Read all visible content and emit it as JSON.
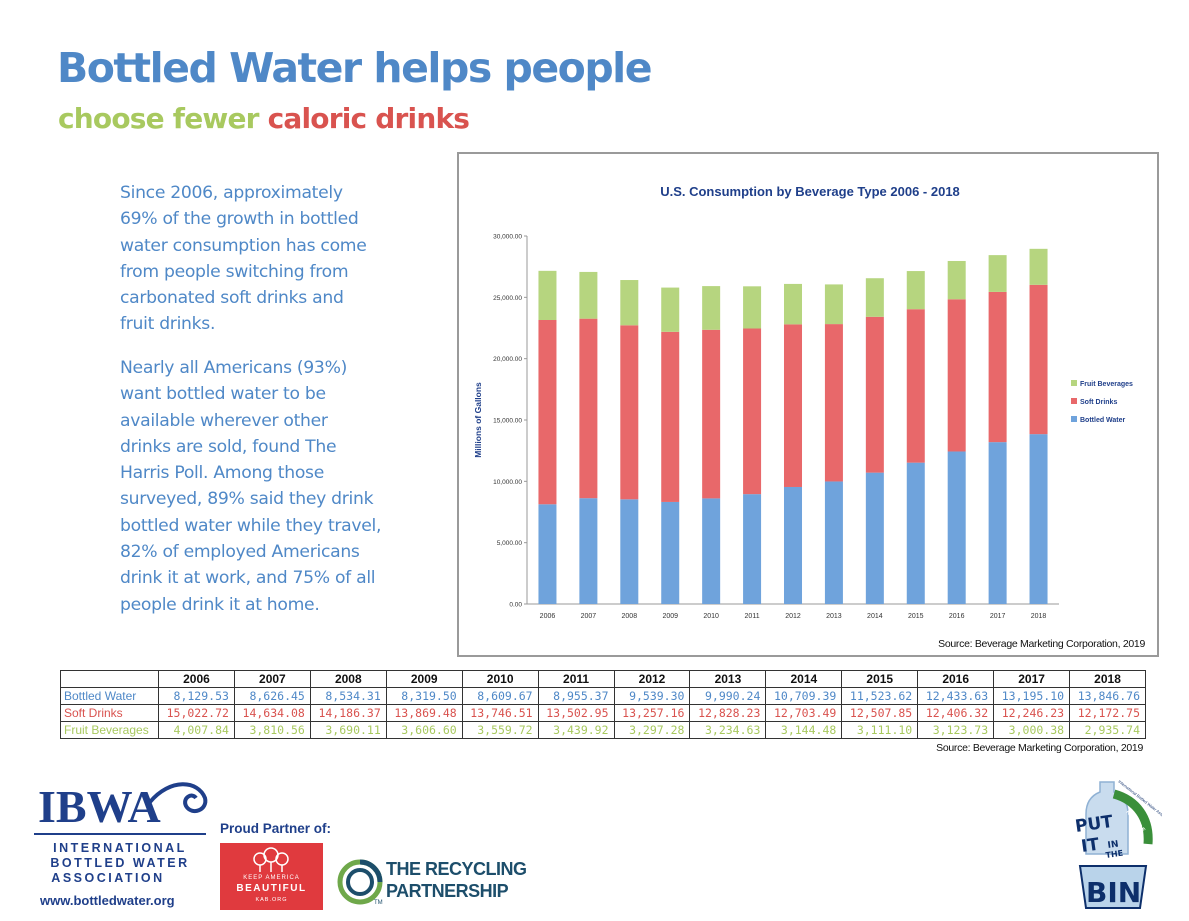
{
  "header": {
    "title": "Bottled Water helps people",
    "subtitle_part1": "choose fewer",
    "subtitle_part2": "caloric drinks"
  },
  "body": {
    "paragraph1": "Since 2006, approximately 69% of the growth in bottled water consumption has come from people switching from carbonated soft drinks and fruit drinks.",
    "paragraph2": "Nearly all Americans (93%) want bottled water to be available wherever other drinks are sold, found The Harris Poll. Among those surveyed, 89% said they drink bottled water while they travel, 82% of employed Americans drink it at work, and 75% of all people drink it at home."
  },
  "colors": {
    "title_blue": "#4f88c7",
    "green": "#a8c95f",
    "red": "#d9534f",
    "bar_water": "#6fa3dc",
    "bar_soft": "#e8686a",
    "bar_fruit": "#b6d57f"
  },
  "chart_data": {
    "type": "bar",
    "stacked": true,
    "title": "U.S. Consumption by Beverage Type 2006 - 2018",
    "ylabel": "Millions of Gallons",
    "xlabel": "",
    "ylim": [
      0,
      30000
    ],
    "yticks": [
      "0.00",
      "5,000.00",
      "10,000.00",
      "15,000.00",
      "20,000.00",
      "25,000.00",
      "30,000.00"
    ],
    "categories": [
      "2006",
      "2007",
      "2008",
      "2009",
      "2010",
      "2011",
      "2012",
      "2013",
      "2014",
      "2015",
      "2016",
      "2017",
      "2018"
    ],
    "series": [
      {
        "name": "Bottled Water",
        "values": [
          8129.53,
          8626.45,
          8534.31,
          8319.5,
          8609.67,
          8955.37,
          9539.3,
          9990.24,
          10709.39,
          11523.62,
          12433.63,
          13195.1,
          13846.76
        ]
      },
      {
        "name": "Soft Drinks",
        "values": [
          15022.72,
          14634.08,
          14186.37,
          13869.48,
          13746.51,
          13502.95,
          13257.16,
          12828.23,
          12703.49,
          12507.85,
          12406.32,
          12246.23,
          12172.75
        ]
      },
      {
        "name": "Fruit Beverages",
        "values": [
          4007.84,
          3810.56,
          3690.11,
          3606.6,
          3559.72,
          3439.92,
          3297.28,
          3234.63,
          3144.48,
          3111.1,
          3123.73,
          3000.38,
          2935.74
        ]
      }
    ],
    "legend": [
      "Fruit Beverages",
      "Soft Drinks",
      "Bottled Water"
    ],
    "legend_position": "right",
    "grid": false,
    "source": "Source: Beverage Marketing Corporation, 2019"
  },
  "table": {
    "columns": [
      "",
      "2006",
      "2007",
      "2008",
      "2009",
      "2010",
      "2011",
      "2012",
      "2013",
      "2014",
      "2015",
      "2016",
      "2017",
      "2018"
    ],
    "rows": [
      {
        "label": "Bottled Water",
        "cells": [
          "8,129.53",
          "8,626.45",
          "8,534.31",
          "8,319.50",
          "8,609.67",
          "8,955.37",
          "9,539.30",
          "9,990.24",
          "10,709.39",
          "11,523.62",
          "12,433.63",
          "13,195.10",
          "13,846.76"
        ]
      },
      {
        "label": "Soft Drinks",
        "cells": [
          "15,022.72",
          "14,634.08",
          "14,186.37",
          "13,869.48",
          "13,746.51",
          "13,502.95",
          "13,257.16",
          "12,828.23",
          "12,703.49",
          "12,507.85",
          "12,406.32",
          "12,246.23",
          "12,172.75"
        ]
      },
      {
        "label": "Fruit Beverages",
        "cells": [
          "4,007.84",
          "3,810.56",
          "3,690.11",
          "3,606.60",
          "3,559.72",
          "3,439.92",
          "3,297.28",
          "3,234.63",
          "3,144.48",
          "3,111.10",
          "3,123.73",
          "3,000.38",
          "2,935.74"
        ]
      }
    ],
    "source": "Source: Beverage Marketing Corporation, 2019"
  },
  "footer": {
    "ibwa_acronym": "IBWA",
    "ibwa_line1": "INTERNATIONAL",
    "ibwa_line2": "BOTTLED WATER",
    "ibwa_line3": "ASSOCIATION",
    "ibwa_url": "www.bottledwater.org",
    "partner_label": "Proud Partner of:",
    "kab_small": "KEEP AMERICA",
    "kab_big": "BEAUTIFUL",
    "kab_url": "KAB.ORG",
    "trp_line1": "THE RECYCLING",
    "trp_line2": "PARTNERSHIP",
    "trp_tm": "TM",
    "bin_put": "PUT",
    "bin_it": "IT",
    "bin_in": "IN",
    "bin_the": "THE",
    "bin_bin": "BIN",
    "bin_recycle": "RECYCLE",
    "bin_org": "International Bottled Water Association"
  }
}
